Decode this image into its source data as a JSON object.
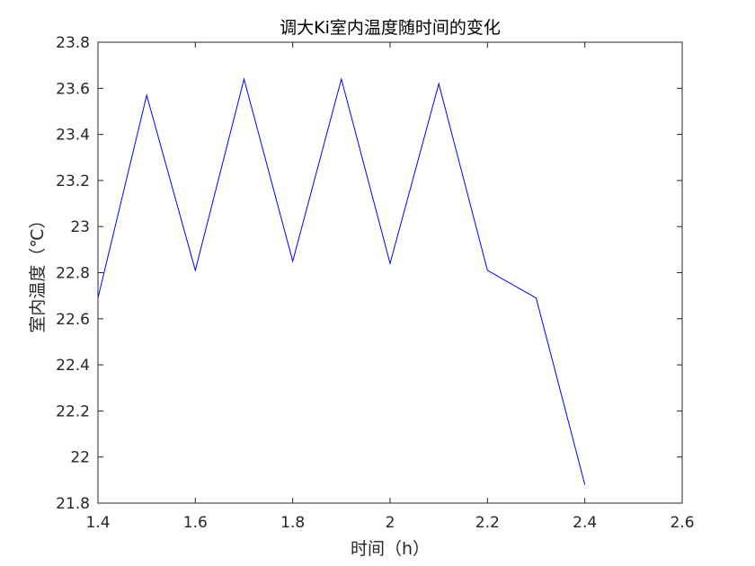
{
  "chart_data": {
    "type": "line",
    "title": "调大Ki室内温度随时间的变化",
    "xlabel": "时间（h）",
    "ylabel": "室内温度（℃）",
    "xlim": [
      1.4,
      2.6
    ],
    "ylim": [
      21.8,
      23.8
    ],
    "xticks": [
      "1.4",
      "1.6",
      "1.8",
      "2",
      "2.2",
      "2.4",
      "2.6"
    ],
    "yticks": [
      "21.8",
      "22",
      "22.2",
      "22.4",
      "22.6",
      "22.8",
      "23",
      "23.2",
      "23.4",
      "23.6",
      "23.8"
    ],
    "grid": false,
    "series": [
      {
        "color": "#0000ff",
        "x": [
          1.4,
          1.5,
          1.6,
          1.7,
          1.8,
          1.9,
          2.0,
          2.1,
          2.2,
          2.3,
          2.4
        ],
        "y": [
          22.69,
          23.57,
          22.81,
          23.64,
          22.85,
          23.64,
          22.84,
          23.62,
          22.81,
          22.69,
          21.88
        ]
      }
    ]
  }
}
